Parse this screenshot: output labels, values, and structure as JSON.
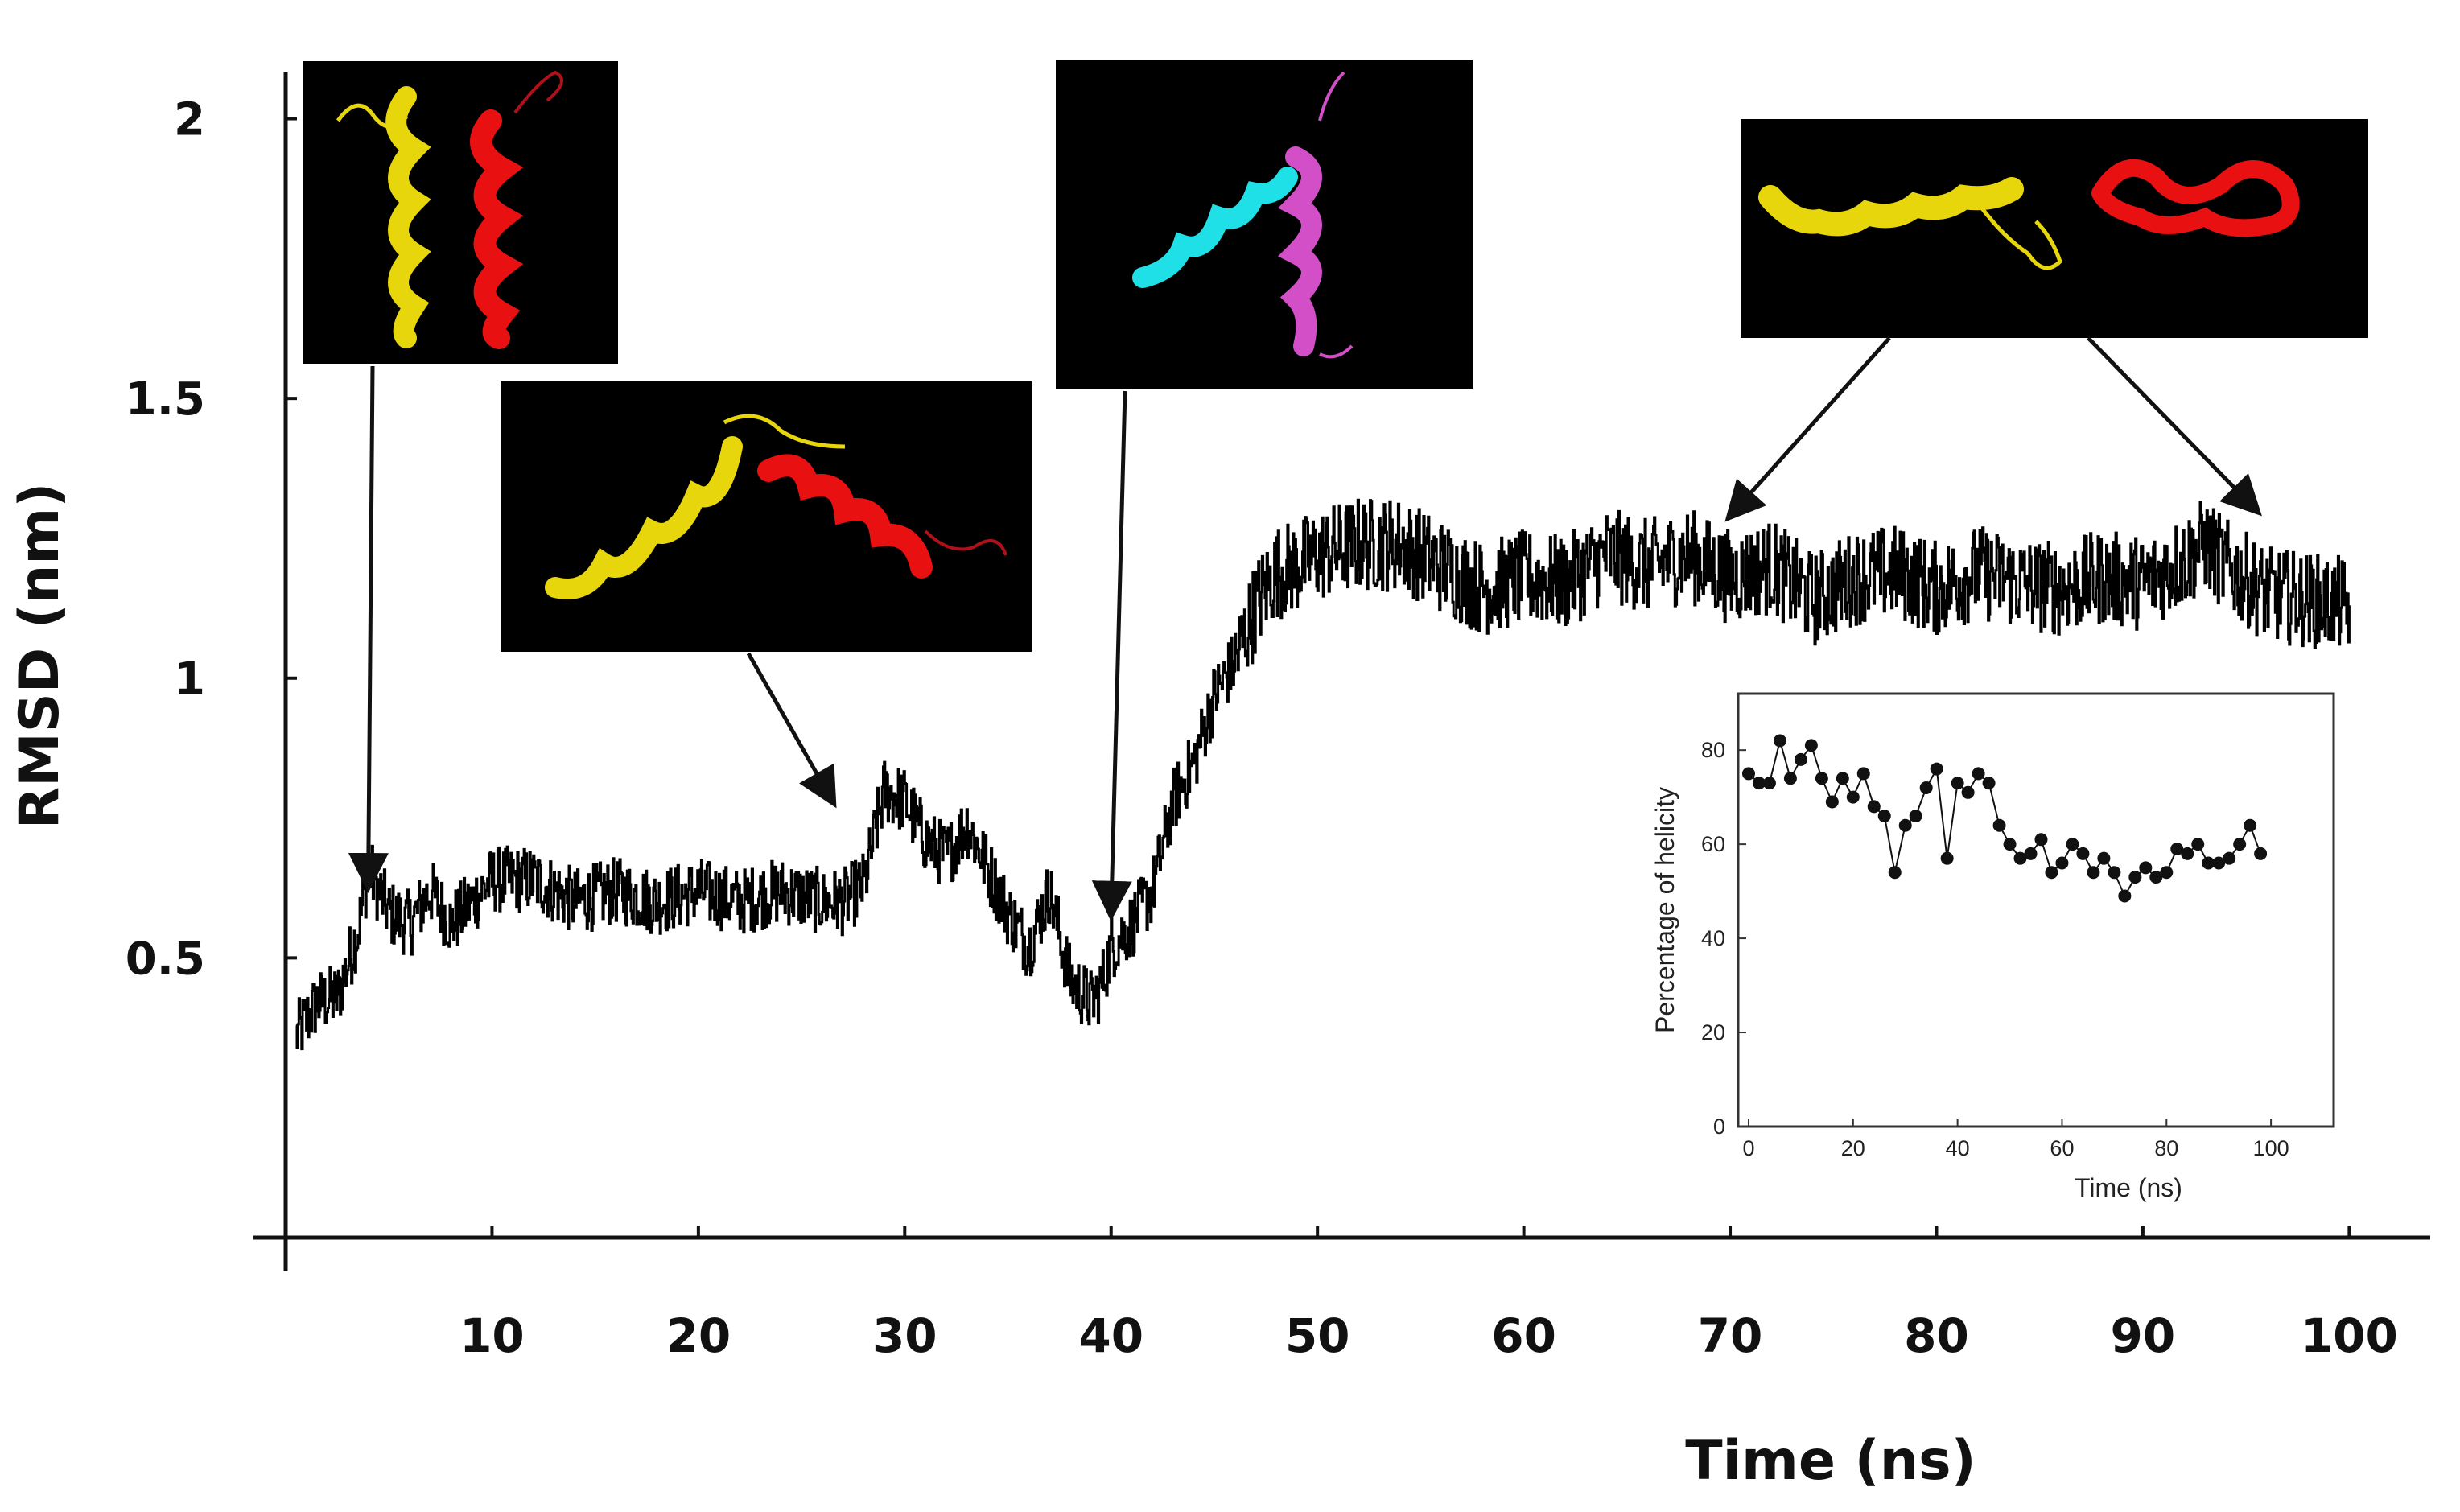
{
  "chart_data": [
    {
      "type": "line",
      "title": "",
      "xlabel": "Time (ns)",
      "ylabel": "RMSD (nm)",
      "xlim": [
        0,
        101
      ],
      "ylim": [
        0,
        2.1
      ],
      "x_ticks": [
        10,
        20,
        30,
        40,
        50,
        60,
        70,
        80,
        90,
        100
      ],
      "y_ticks": [
        0.5,
        1,
        1.5,
        2
      ],
      "x_tick_labels": [
        "10",
        "20",
        "30",
        "40",
        "50",
        "60",
        "70",
        "80",
        "90",
        "100"
      ],
      "y_tick_labels": [
        "0.5",
        "1",
        "1.5",
        "2"
      ],
      "grid": false,
      "series": [
        {
          "color": "#000000",
          "x": [
            0.5,
            1.5,
            2.5,
            3.5,
            4,
            5,
            6,
            7,
            8,
            9,
            10,
            12,
            14,
            16,
            18,
            20,
            22,
            24,
            26,
            27,
            28,
            29,
            30,
            31,
            32,
            33,
            34,
            35,
            36,
            37,
            38,
            38.5,
            39,
            39.5,
            40,
            41,
            42,
            43,
            44,
            45,
            46,
            47,
            48,
            49,
            50,
            52,
            54,
            56,
            58,
            60,
            62,
            64,
            66,
            68,
            70,
            72,
            74,
            76,
            78,
            80,
            82,
            84,
            86,
            88,
            90,
            92,
            93,
            94,
            96,
            98,
            100
          ],
          "y": [
            0.36,
            0.42,
            0.43,
            0.55,
            0.66,
            0.58,
            0.56,
            0.62,
            0.56,
            0.6,
            0.64,
            0.64,
            0.6,
            0.62,
            0.6,
            0.62,
            0.6,
            0.62,
            0.6,
            0.6,
            0.63,
            0.8,
            0.78,
            0.71,
            0.68,
            0.74,
            0.66,
            0.58,
            0.52,
            0.62,
            0.46,
            0.44,
            0.42,
            0.45,
            0.52,
            0.56,
            0.62,
            0.78,
            0.85,
            0.97,
            1.03,
            1.13,
            1.19,
            1.2,
            1.22,
            1.24,
            1.24,
            1.2,
            1.16,
            1.18,
            1.17,
            1.22,
            1.2,
            1.22,
            1.18,
            1.2,
            1.14,
            1.18,
            1.19,
            1.16,
            1.19,
            1.17,
            1.16,
            1.18,
            1.17,
            1.21,
            1.24,
            1.2,
            1.15,
            1.14,
            1.13
          ]
        }
      ],
      "annotations": [
        {
          "target_x": 4,
          "target_y": 0.63,
          "structure": "two parallel helices",
          "colors": [
            "#e8d60c",
            "#e81010"
          ]
        },
        {
          "target_x": 26.5,
          "target_y": 0.78,
          "structure": "helices splayed apart",
          "colors": [
            "#e8d60c",
            "#e81010"
          ]
        },
        {
          "target_x": 40,
          "target_y": 0.58,
          "structure": "helices crossed",
          "colors": [
            "#1ee0e6",
            "#d24fc8"
          ]
        },
        {
          "target_x": 70,
          "target_y": 1.29,
          "structure": "separated helices",
          "colors": [
            "#e8d60c",
            "#e81010"
          ]
        },
        {
          "target_x": 95.5,
          "target_y": 1.3,
          "structure": "separated helices",
          "colors": [
            "#e8d60c",
            "#e81010"
          ]
        }
      ]
    },
    {
      "type": "scatter",
      "title": "",
      "xlabel": "Time (ns)",
      "ylabel": "Percentage of helicity",
      "xlim": [
        -2,
        112
      ],
      "ylim": [
        0,
        92
      ],
      "x_ticks": [
        0,
        20,
        40,
        60,
        80,
        100
      ],
      "y_ticks": [
        0,
        20,
        40,
        60,
        80
      ],
      "x_tick_labels": [
        "0",
        "20",
        "40",
        "60",
        "80",
        "100"
      ],
      "y_tick_labels": [
        "0",
        "20",
        "40",
        "60",
        "80"
      ],
      "grid": false,
      "series": [
        {
          "color": "#111111",
          "x": [
            0,
            2,
            4,
            6,
            8,
            10,
            12,
            14,
            16,
            18,
            20,
            22,
            24,
            26,
            28,
            30,
            32,
            34,
            36,
            38,
            40,
            42,
            44,
            46,
            48,
            50,
            52,
            54,
            56,
            58,
            60,
            62,
            64,
            66,
            68,
            70,
            72,
            74,
            76,
            78,
            80,
            82,
            84,
            86,
            88,
            90,
            92,
            94,
            96,
            98
          ],
          "y": [
            75,
            73,
            73,
            82,
            74,
            78,
            81,
            74,
            69,
            74,
            70,
            75,
            68,
            66,
            54,
            64,
            66,
            72,
            76,
            57,
            73,
            71,
            75,
            73,
            64,
            60,
            57,
            58,
            61,
            54,
            56,
            60,
            58,
            54,
            57,
            54,
            49,
            53,
            55,
            53,
            54,
            59,
            58,
            60,
            56,
            56,
            57,
            60,
            64,
            58
          ]
        }
      ]
    }
  ]
}
